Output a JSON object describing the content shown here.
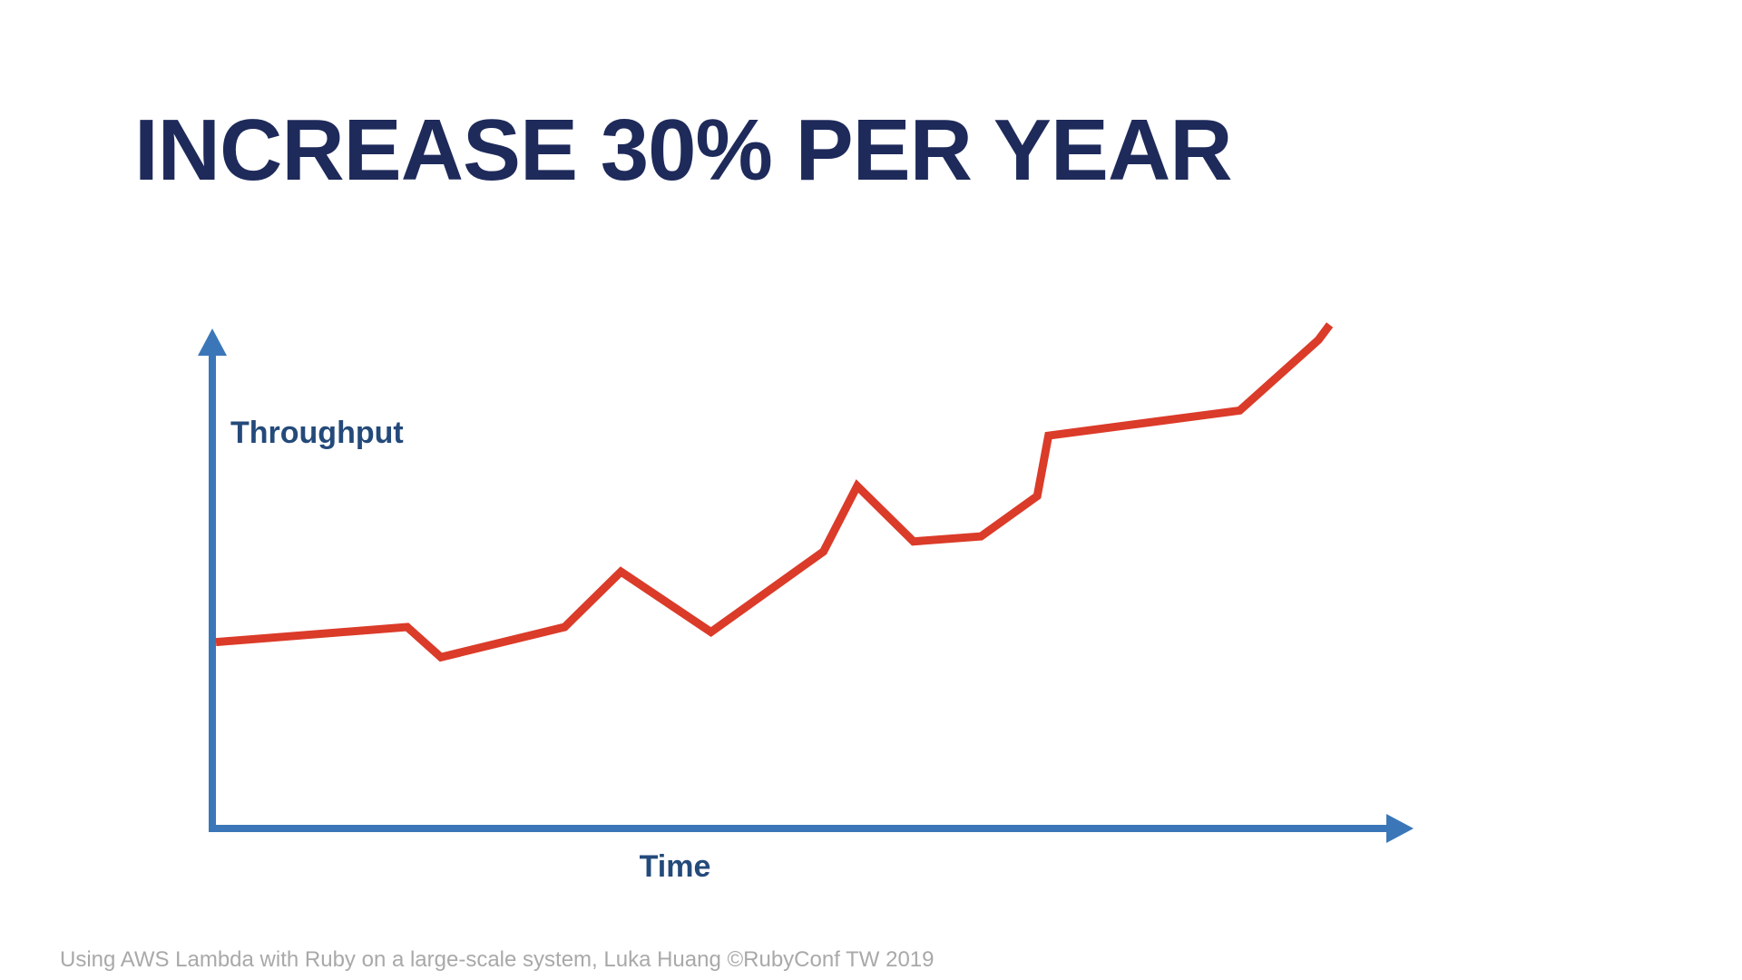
{
  "slide": {
    "title": "INCREASE 30% PER YEAR",
    "footer": "Using AWS Lambda with Ruby on a large-scale system, Luka Huang ©RubyConf TW 2019"
  },
  "colors": {
    "title": "#1e2a5a",
    "axis": "#3b77b8",
    "axis_label": "#244a7a",
    "series": "#db3b29",
    "footer": "#a9a9a9"
  },
  "chart_data": {
    "type": "line",
    "title": "",
    "xlabel": "Time",
    "ylabel": "Throughput",
    "grid": false,
    "legend": "none",
    "xlim": [
      0,
      100
    ],
    "ylim": [
      0,
      100
    ],
    "series": [
      {
        "values": [
          {
            "x": 0,
            "y": 37
          },
          {
            "x": 17,
            "y": 40
          },
          {
            "x": 20,
            "y": 34
          },
          {
            "x": 31,
            "y": 40
          },
          {
            "x": 36,
            "y": 51
          },
          {
            "x": 44,
            "y": 39
          },
          {
            "x": 54,
            "y": 55
          },
          {
            "x": 57,
            "y": 68
          },
          {
            "x": 62,
            "y": 57
          },
          {
            "x": 68,
            "y": 58
          },
          {
            "x": 73,
            "y": 66
          },
          {
            "x": 74,
            "y": 78
          },
          {
            "x": 91,
            "y": 83
          },
          {
            "x": 98,
            "y": 97
          },
          {
            "x": 99,
            "y": 100
          }
        ]
      }
    ]
  }
}
